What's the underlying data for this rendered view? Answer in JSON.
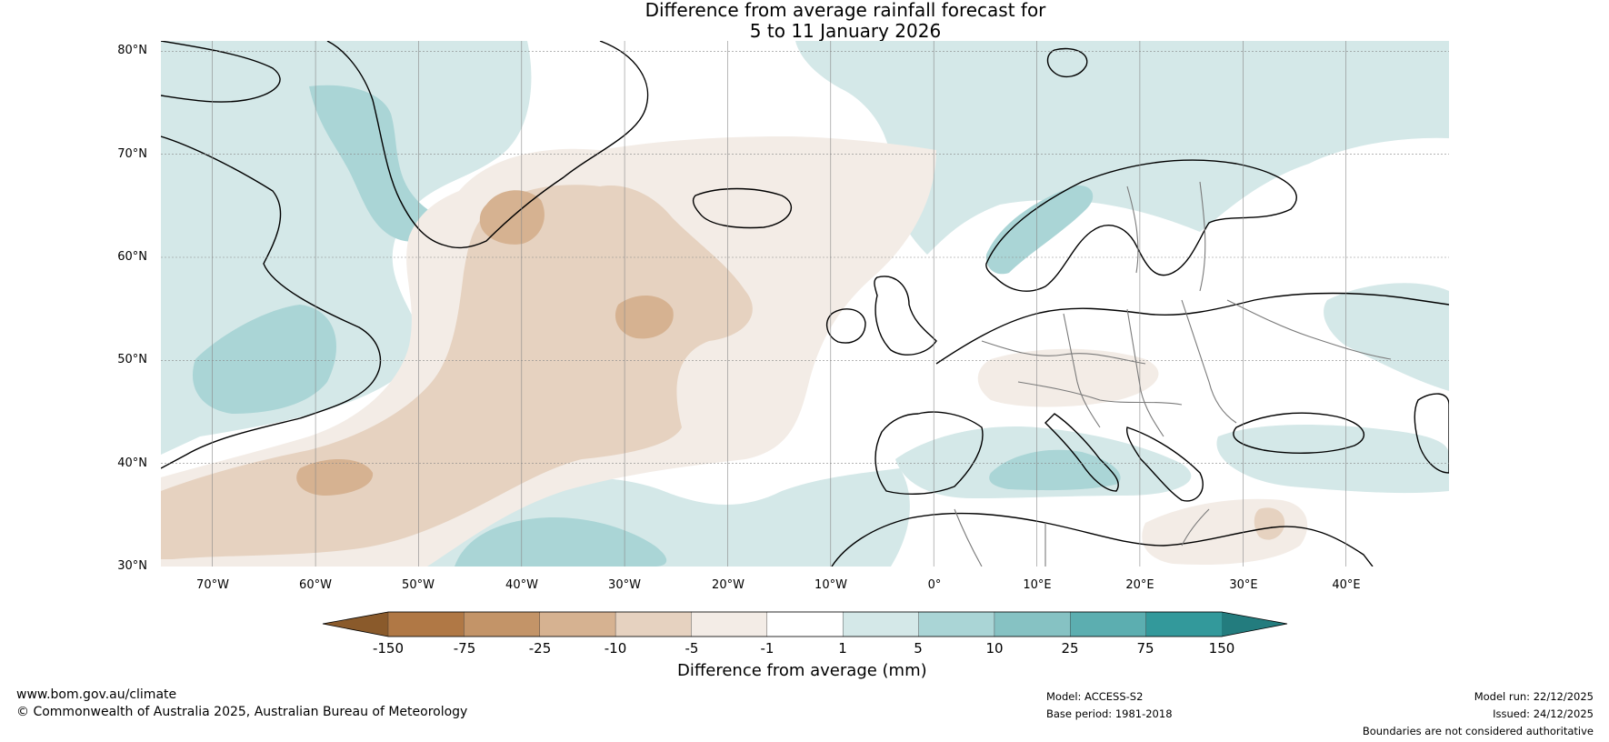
{
  "title": {
    "line1": "Difference from average rainfall forecast for",
    "line2": "5 to 11 January 2026"
  },
  "map": {
    "region": "North Atlantic and Europe",
    "latitude_labels": [
      "80°N",
      "70°N",
      "60°N",
      "50°N",
      "40°N",
      "30°N"
    ],
    "longitude_labels": [
      "70°W",
      "60°W",
      "50°W",
      "40°W",
      "30°W",
      "20°W",
      "10°W",
      "0°",
      "10°E",
      "20°E",
      "30°E",
      "40°E"
    ],
    "lat_range": [
      30,
      81
    ],
    "lon_range": [
      -75,
      50
    ],
    "gridlines": true
  },
  "colorbar": {
    "ticks": [
      "-150",
      "-75",
      "-25",
      "-10",
      "-5",
      "-1",
      "1",
      "5",
      "10",
      "25",
      "75",
      "150"
    ],
    "colors": [
      "#8a5a2b",
      "#b07845",
      "#c39468",
      "#d6b291",
      "#e6d2c0",
      "#f3ece6",
      "#ffffff",
      "#d4e8e8",
      "#aad5d6",
      "#86c2c3",
      "#5caeb0",
      "#33999b",
      "#237c7e"
    ],
    "label": "Difference from average (mm)"
  },
  "footer": {
    "website": "www.bom.gov.au/climate",
    "copyright": "© Commonwealth of Australia 2025, Australian Bureau of Meteorology",
    "model": "Model: ACCESS-S2",
    "base_period": "Base period: 1981-2018",
    "model_run": "Model run: 22/12/2025",
    "issued": "Issued: 24/12/2025",
    "disclaimer": "Boundaries are not considered authoritative"
  }
}
